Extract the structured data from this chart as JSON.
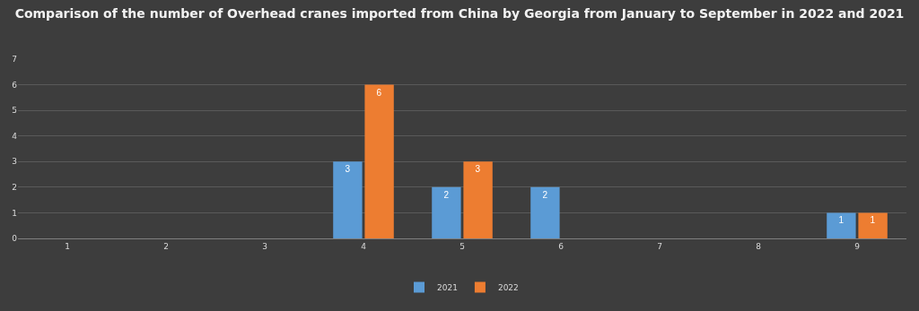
{
  "chart_data": {
    "type": "bar",
    "title": "Comparison of the number of Overhead cranes imported from China by Georgia from January to September in 2022 and 2021",
    "categories": [
      "1",
      "2",
      "3",
      "4",
      "5",
      "6",
      "7",
      "8",
      "9"
    ],
    "series": [
      {
        "name": "2021",
        "color": "#5b9bd5",
        "values": [
          0,
          0,
          0,
          3,
          2,
          2,
          0,
          0,
          1
        ],
        "value_labels": [
          null,
          null,
          null,
          "3",
          "2",
          "2",
          null,
          null,
          "1"
        ]
      },
      {
        "name": "2022",
        "color": "#ed7d31",
        "values": [
          0,
          0,
          0,
          6,
          3,
          0,
          0,
          0,
          1
        ],
        "value_labels": [
          null,
          null,
          null,
          "6",
          "3",
          null,
          null,
          null,
          "1"
        ]
      }
    ],
    "ylim": [
      0,
      7
    ],
    "yticks": [
      0,
      1,
      2,
      3,
      4,
      5,
      6,
      7
    ],
    "grid": "y",
    "legend": "bottom"
  }
}
